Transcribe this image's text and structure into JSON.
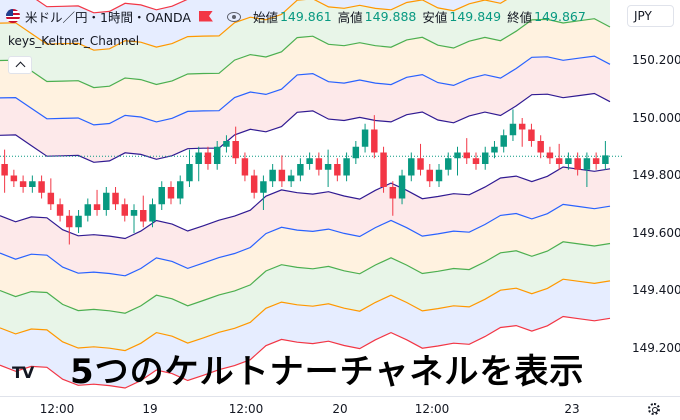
{
  "header": {
    "symbol_title": "米ドル／円・1時間・OANDA",
    "ohlc": [
      {
        "label": "始値",
        "value": "149.861"
      },
      {
        "label": "高値",
        "value": "149.888"
      },
      {
        "label": "安値",
        "value": "149.849"
      },
      {
        "label": "終値",
        "value": "149.867"
      }
    ],
    "currency": "JPY"
  },
  "indicator": {
    "label": "keys_Keltner_Channel"
  },
  "price_axis": {
    "labels": [
      "150.200",
      "150.000",
      "149.800",
      "149.600",
      "149.400",
      "149.200"
    ]
  },
  "time_axis": {
    "labels": [
      "12:00",
      "19",
      "12:00",
      "20",
      "12:00",
      "23"
    ]
  },
  "caption": "5つのケルトナーチャネルを表示",
  "logo": "TV",
  "colors": {
    "up": "#089981",
    "down": "#f23645",
    "bands": [
      "#f23645",
      "#ff9800",
      "#4caf50",
      "#2962ff"
    ],
    "mid": "#311b92"
  },
  "icons": [
    "flag-icon",
    "eye-icon",
    "chevron-up-icon",
    "settings-icon",
    "tradingview-logo"
  ],
  "chart_data": {
    "type": "candlestick",
    "yaxis_ticks": [
      149.2,
      149.4,
      149.6,
      149.8,
      150.0,
      150.2
    ],
    "xaxis_ticks": [
      "12:00",
      "19",
      "12:00",
      "20",
      "12:00",
      "23"
    ],
    "last_close": 149.867,
    "candles": [
      {
        "o": 149.84,
        "c": 149.8
      },
      {
        "o": 149.8,
        "c": 149.78
      },
      {
        "o": 149.78,
        "c": 149.76
      },
      {
        "o": 149.76,
        "c": 149.78
      },
      {
        "o": 149.78,
        "c": 149.74
      },
      {
        "o": 149.74,
        "c": 149.7
      },
      {
        "o": 149.7,
        "c": 149.66
      },
      {
        "o": 149.66,
        "c": 149.62
      },
      {
        "o": 149.62,
        "c": 149.66
      },
      {
        "o": 149.66,
        "c": 149.7
      },
      {
        "o": 149.7,
        "c": 149.68
      },
      {
        "o": 149.68,
        "c": 149.74
      },
      {
        "o": 149.74,
        "c": 149.7
      },
      {
        "o": 149.7,
        "c": 149.66
      },
      {
        "o": 149.66,
        "c": 149.68
      },
      {
        "o": 149.68,
        "c": 149.64
      },
      {
        "o": 149.64,
        "c": 149.7
      },
      {
        "o": 149.7,
        "c": 149.76
      },
      {
        "o": 149.76,
        "c": 149.72
      },
      {
        "o": 149.72,
        "c": 149.78
      },
      {
        "o": 149.78,
        "c": 149.84
      },
      {
        "o": 149.84,
        "c": 149.88
      },
      {
        "o": 149.88,
        "c": 149.84
      },
      {
        "o": 149.84,
        "c": 149.9
      },
      {
        "o": 149.9,
        "c": 149.92
      },
      {
        "o": 149.92,
        "c": 149.86
      },
      {
        "o": 149.86,
        "c": 149.8
      },
      {
        "o": 149.8,
        "c": 149.74
      },
      {
        "o": 149.74,
        "c": 149.78
      },
      {
        "o": 149.78,
        "c": 149.82
      },
      {
        "o": 149.82,
        "c": 149.78
      },
      {
        "o": 149.78,
        "c": 149.8
      },
      {
        "o": 149.8,
        "c": 149.84
      },
      {
        "o": 149.84,
        "c": 149.86
      },
      {
        "o": 149.86,
        "c": 149.82
      },
      {
        "o": 149.82,
        "c": 149.84
      },
      {
        "o": 149.84,
        "c": 149.8
      },
      {
        "o": 149.8,
        "c": 149.86
      },
      {
        "o": 149.86,
        "c": 149.9
      },
      {
        "o": 149.9,
        "c": 149.96
      },
      {
        "o": 149.96,
        "c": 149.88
      },
      {
        "o": 149.88,
        "c": 149.76
      },
      {
        "o": 149.76,
        "c": 149.72
      },
      {
        "o": 149.72,
        "c": 149.8
      },
      {
        "o": 149.8,
        "c": 149.86
      },
      {
        "o": 149.86,
        "c": 149.82
      },
      {
        "o": 149.82,
        "c": 149.78
      },
      {
        "o": 149.78,
        "c": 149.82
      },
      {
        "o": 149.82,
        "c": 149.86
      },
      {
        "o": 149.86,
        "c": 149.88
      },
      {
        "o": 149.88,
        "c": 149.86
      },
      {
        "o": 149.86,
        "c": 149.84
      },
      {
        "o": 149.84,
        "c": 149.88
      },
      {
        "o": 149.88,
        "c": 149.9
      },
      {
        "o": 149.9,
        "c": 149.94
      },
      {
        "o": 149.94,
        "c": 149.98
      },
      {
        "o": 149.98,
        "c": 149.96
      },
      {
        "o": 149.96,
        "c": 149.92
      },
      {
        "o": 149.92,
        "c": 149.88
      },
      {
        "o": 149.88,
        "c": 149.86
      },
      {
        "o": 149.86,
        "c": 149.84
      },
      {
        "o": 149.84,
        "c": 149.86
      },
      {
        "o": 149.86,
        "c": 149.82
      },
      {
        "o": 149.82,
        "c": 149.86
      },
      {
        "o": 149.86,
        "c": 149.84
      },
      {
        "o": 149.84,
        "c": 149.87
      }
    ],
    "mid": [
      149.8,
      149.79,
      149.78,
      149.76,
      149.74,
      149.73,
      149.72,
      149.72,
      149.73,
      149.74,
      149.75,
      149.75,
      149.75,
      149.76,
      149.77,
      149.8,
      149.82,
      149.84,
      149.86,
      149.88,
      149.88,
      149.87,
      149.86,
      149.86,
      149.87,
      149.88,
      149.88,
      149.87,
      149.86,
      149.86,
      149.87,
      149.89,
      149.9,
      149.92,
      149.93,
      149.94,
      149.95,
      149.95,
      149.95,
      149.94
    ],
    "band_offsets": [
      0.13,
      0.26,
      0.39,
      0.52,
      0.65
    ]
  }
}
